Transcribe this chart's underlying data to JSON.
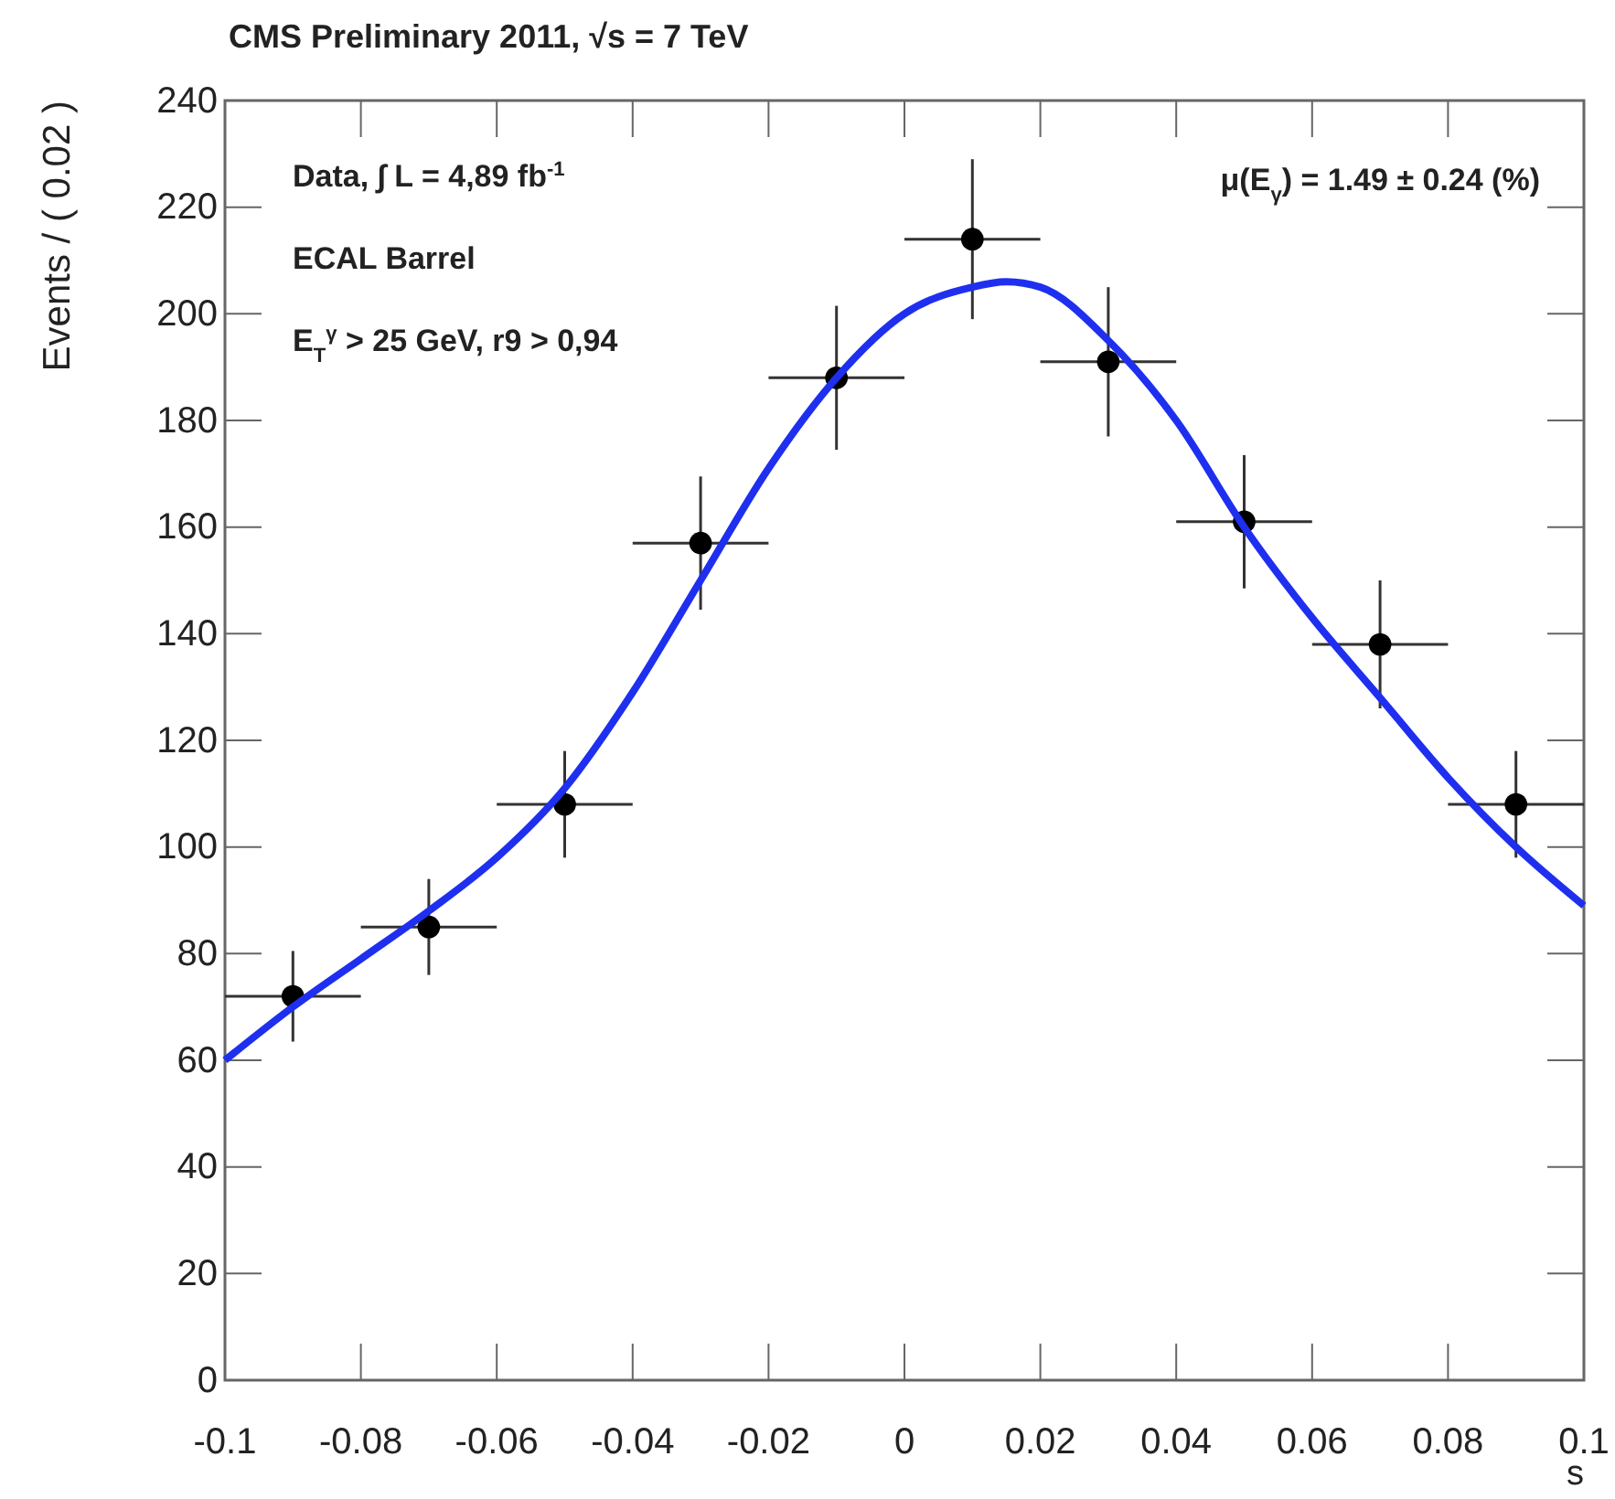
{
  "chart_data": {
    "type": "scatter",
    "title": "CMS Preliminary 2011, √s = 7 TeV",
    "xlabel": "s",
    "ylabel": "Events / ( 0.02 )",
    "annotations": [
      "Data, ∫ L = 4,89 fb$^{-1}$",
      "ECAL Barrel",
      "E$_{T}$$^{γ}$ > 25 GeV, r9 > 0,94",
      "μ(E$_{γ}$) = 1.49 ± 0.24 (%)"
    ],
    "x": [
      -0.09,
      -0.07,
      -0.05,
      -0.03,
      -0.01,
      0.01,
      0.03,
      0.05,
      0.07,
      0.09
    ],
    "series": [
      {
        "color": "#000000",
        "marker": "circle",
        "values": [
          72,
          85,
          108,
          157,
          188,
          214,
          191,
          161,
          138,
          108
        ],
        "errors": [
          8.5,
          9,
          10,
          12.5,
          13.5,
          15,
          14,
          12.5,
          12,
          10
        ],
        "xerrors": [
          0.01,
          0.01,
          0.01,
          0.01,
          0.01,
          0.01,
          0.01,
          0.01,
          0.01,
          0.01
        ]
      },
      {
        "type": "line",
        "color": "#1f2fef",
        "line_style": "solid",
        "x": [
          -0.1,
          -0.09,
          -0.08,
          -0.07,
          -0.06,
          -0.05,
          -0.04,
          -0.03,
          -0.02,
          -0.01,
          0,
          0.01,
          0.015,
          0.02,
          0.03,
          0.04,
          0.05,
          0.06,
          0.07,
          0.08,
          0.09,
          0.1
        ],
        "values": [
          60,
          70,
          79,
          88,
          98,
          111,
          129,
          150,
          171,
          188,
          200,
          205,
          206,
          205,
          195,
          180,
          160,
          143,
          128,
          113,
          100,
          89
        ]
      }
    ],
    "xlim": [
      -0.1,
      0.1
    ],
    "xticks": [
      -0.1,
      -0.08,
      -0.06,
      -0.04,
      -0.02,
      0,
      0.02,
      0.04,
      0.06,
      0.08,
      0.1
    ],
    "ylim": [
      0,
      240
    ],
    "yticks": [
      0,
      20,
      40,
      60,
      80,
      100,
      120,
      140,
      160,
      180,
      200,
      220,
      240
    ],
    "grid": false
  }
}
